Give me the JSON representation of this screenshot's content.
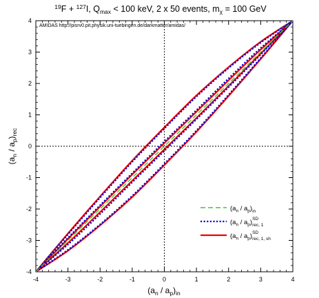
{
  "chart_data": {
    "type": "line",
    "title": {
      "target_a": "19",
      "target_a_el": "F",
      "plus": " + ",
      "target_b": "127",
      "target_b_el": "I",
      "qmax_pre": ", Q",
      "qmax_sub": "max",
      "qmax_post": " < 100 keV, 2 x 50 events, m",
      "mass_sub": "χ",
      "mass_post": " = 100 GeV"
    },
    "annotation": "AMIDAS   http://pisrv0.pit.physik.uni-tuebingen.de/darkmatter/amidas/",
    "xlabel": {
      "main": "(a",
      "n": "n",
      "slash": " / a",
      "p": "p",
      "close": ")",
      "sub": "in"
    },
    "ylabel": {
      "main": "(a",
      "n": "n",
      "slash": " / a",
      "p": "p",
      "close": ")",
      "sub": "rec"
    },
    "xlim": [
      -4,
      4
    ],
    "ylim": [
      -4,
      4
    ],
    "xticks": [
      "-4",
      "-3",
      "-2",
      "-1",
      "0",
      "1",
      "2",
      "3",
      "4"
    ],
    "yticks": [
      "-4",
      "-3",
      "-2",
      "-1",
      "0",
      "1",
      "2",
      "3",
      "4"
    ],
    "reference_lines": {
      "x": 0,
      "y": 0,
      "style": "dotted"
    },
    "legend_position": "bottom-right",
    "series": [
      {
        "name": "(a_n / a_p)_in",
        "legend": {
          "main": "(a",
          "n": "n",
          "slash": " / a",
          "p": "p",
          "close": ")",
          "sub": "in",
          "sup": ""
        },
        "color": "#33cc33",
        "style": "dashed",
        "lines": [
          {
            "x": [
              -4,
              -3,
              -2,
              -1,
              0,
              1,
              2,
              3,
              4
            ],
            "y": [
              -4,
              -3,
              -2,
              -1,
              0,
              1,
              2,
              3,
              4
            ]
          }
        ]
      },
      {
        "name": "(a_n / a_p)_rec,1^SD",
        "legend": {
          "main": "(a",
          "n": "n",
          "slash": " / a",
          "p": "p",
          "close": ")",
          "sub": "rec, 1",
          "sup": "SD"
        },
        "color": "#0000cc",
        "style": "dotted",
        "lines": [
          {
            "x": [
              -4,
              -3,
              -2,
              -1,
              0,
              1,
              2,
              3,
              4
            ],
            "y": [
              -4,
              -2.81,
              -1.64,
              -0.5,
              0.56,
              1.58,
              2.49,
              3.3,
              4
            ]
          },
          {
            "x": [
              -4,
              -3,
              -2,
              -1,
              0,
              1,
              2,
              3,
              4
            ],
            "y": [
              -4,
              -3.3,
              -2.49,
              -1.58,
              -0.56,
              0.5,
              1.64,
              2.81,
              4
            ]
          },
          {
            "x": [
              -4,
              -3,
              -2,
              -1,
              0,
              1,
              2,
              3,
              4
            ],
            "y": [
              -4,
              -2.92,
              -1.88,
              -0.86,
              0.15,
              1.15,
              2.16,
              3.13,
              4
            ]
          },
          {
            "x": [
              -4,
              -3,
              -2,
              -1,
              0,
              1,
              2,
              3,
              4
            ],
            "y": [
              -4,
              -3.13,
              -2.16,
              -1.15,
              -0.15,
              0.86,
              1.88,
              2.92,
              4
            ]
          }
        ]
      },
      {
        "name": "(a_n / a_p)_rec,1,sh^SD",
        "legend": {
          "main": "(a",
          "n": "n",
          "slash": " / a",
          "p": "p",
          "close": ")",
          "sub": "rec, 1, sh",
          "sup": "SD"
        },
        "color": "#ee0000",
        "style": "solid",
        "lines": [
          {
            "x": [
              -4,
              -3,
              -2,
              -1,
              0,
              1,
              2,
              3,
              4
            ],
            "y": [
              -4,
              -2.78,
              -1.6,
              -0.46,
              0.6,
              1.62,
              2.52,
              3.33,
              4
            ]
          },
          {
            "x": [
              -4,
              -3,
              -2,
              -1,
              0,
              1,
              2,
              3,
              4
            ],
            "y": [
              -4,
              -3.33,
              -2.52,
              -1.62,
              -0.6,
              0.46,
              1.6,
              2.78,
              4
            ]
          },
          {
            "x": [
              -4,
              -3,
              -2,
              -1,
              0,
              1,
              2,
              3,
              4
            ],
            "y": [
              -4,
              -2.95,
              -1.92,
              -0.9,
              0.1,
              1.1,
              2.1,
              3.08,
              4
            ]
          },
          {
            "x": [
              -4,
              -3,
              -2,
              -1,
              0,
              1,
              2,
              3,
              4
            ],
            "y": [
              -4,
              -3.08,
              -2.1,
              -1.1,
              -0.1,
              0.9,
              1.92,
              2.95,
              4
            ]
          }
        ]
      }
    ]
  }
}
